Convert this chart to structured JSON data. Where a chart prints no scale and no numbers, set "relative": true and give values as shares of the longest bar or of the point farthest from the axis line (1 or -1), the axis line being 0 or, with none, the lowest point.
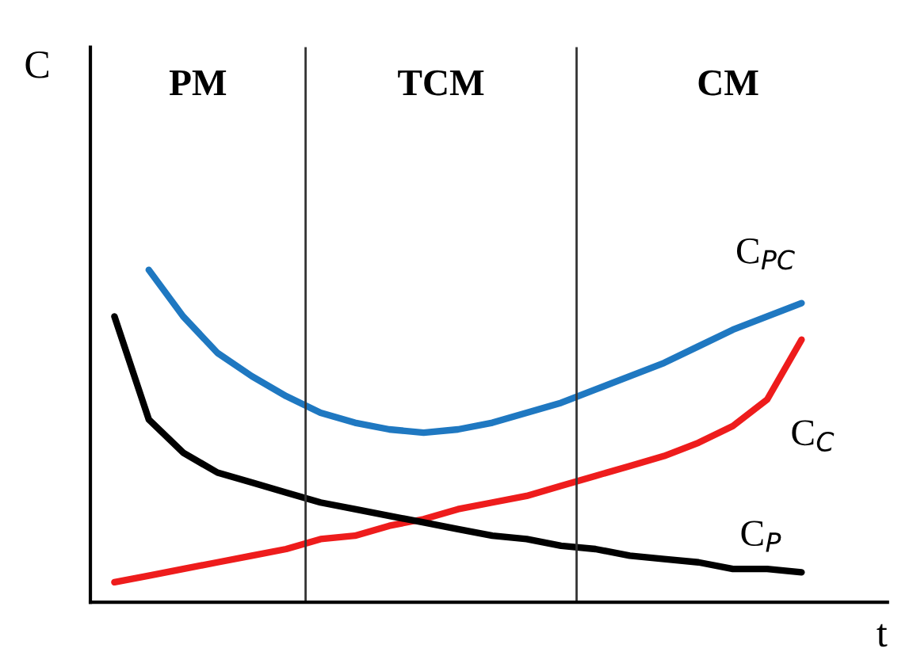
{
  "chart_data": {
    "type": "line",
    "relative": true,
    "xlabel": "t",
    "ylabel": "C",
    "legend": false,
    "annotations": [
      "PM",
      "TCM",
      "CM"
    ],
    "categories": [
      null,
      null,
      null,
      null,
      null,
      null,
      null,
      null,
      null,
      null,
      null,
      null,
      null,
      null,
      null,
      null,
      null,
      null,
      null,
      null,
      null
    ],
    "series": [
      {
        "name": "C$_{PC}$",
        "color": "#1f78c1",
        "values": [
          null,
          1.0,
          0.86,
          0.75,
          0.68,
          0.62,
          0.57,
          0.54,
          0.52,
          0.51,
          0.52,
          0.54,
          0.57,
          0.6,
          0.64,
          0.68,
          0.72,
          0.77,
          0.82,
          0.86,
          0.9
        ]
      },
      {
        "name": "C$_{C}$",
        "color": "#ee1c1c",
        "values": [
          0.06,
          0.08,
          0.1,
          0.12,
          0.14,
          0.16,
          0.19,
          0.2,
          0.23,
          0.25,
          0.28,
          0.3,
          0.32,
          0.35,
          0.38,
          0.41,
          0.44,
          0.48,
          0.53,
          0.61,
          0.79
        ]
      },
      {
        "name": "C$_{P}$",
        "color": "#000000",
        "values": [
          0.86,
          0.55,
          0.45,
          0.39,
          0.36,
          0.33,
          0.3,
          0.28,
          0.26,
          0.24,
          0.22,
          0.2,
          0.19,
          0.17,
          0.16,
          0.14,
          0.13,
          0.12,
          0.1,
          0.1,
          0.09
        ]
      }
    ]
  }
}
